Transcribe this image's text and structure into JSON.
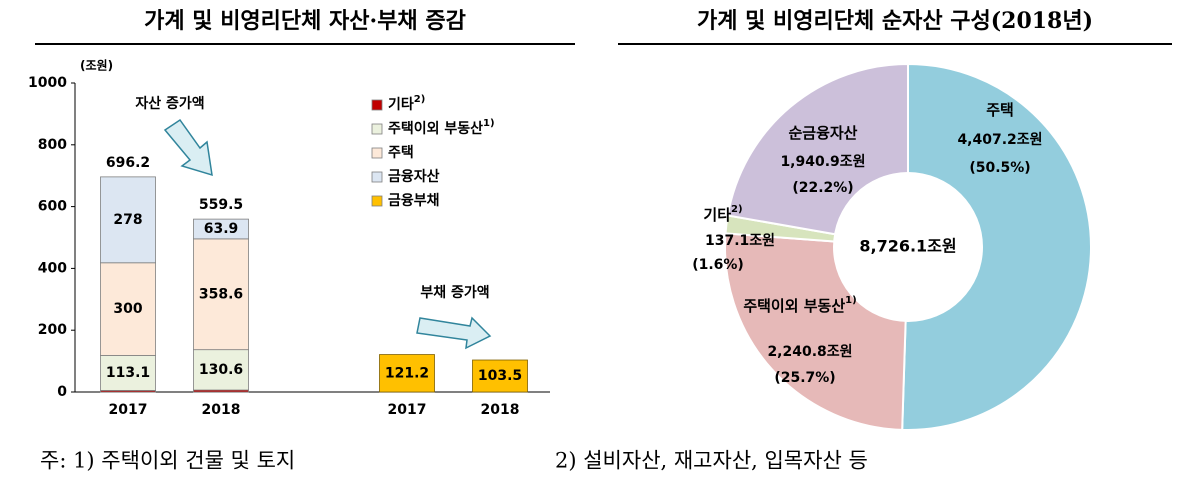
{
  "chart_data": [
    {
      "type": "stacked-bar",
      "title": "가계 및 비영리단체 자산·부채 증감",
      "y_label": "(조원)",
      "categories": [
        "2017",
        "2018",
        "2017",
        "2018"
      ],
      "series": [
        {
          "name": "기타",
          "note": "2)",
          "color": "#c00000",
          "values": [
            5.1,
            6.4,
            null,
            null
          ]
        },
        {
          "name": "주택이외 부동산",
          "note": "1)",
          "color": "#ebf1de",
          "values": [
            113.1,
            130.6,
            null,
            null
          ]
        },
        {
          "name": "주택",
          "color": "#fde9d9",
          "values": [
            300.0,
            358.6,
            null,
            null
          ]
        },
        {
          "name": "금융자산",
          "color": "#dce6f2",
          "values": [
            278.0,
            63.9,
            null,
            null
          ]
        },
        {
          "name": "금융부채",
          "color": "#ffc000",
          "values": [
            null,
            null,
            121.2,
            103.5
          ]
        }
      ],
      "totals": [
        696.2,
        559.5,
        null,
        null
      ],
      "annotations": [
        "자산 증가액",
        "부채 증가액"
      ],
      "ylim": [
        0,
        1000
      ],
      "yticks": [
        0,
        200,
        400,
        600,
        800,
        1000
      ],
      "grid": false
    },
    {
      "type": "donut",
      "title": "가계 및 비영리단체 순자산 구성(2018년)",
      "categories": [
        "주택",
        "주택이외 부동산",
        "기타",
        "순금융자산"
      ],
      "notes": [
        null,
        "1)",
        "2)",
        null
      ],
      "values": [
        4407.2,
        2240.8,
        137.1,
        1940.9
      ],
      "value_labels": [
        "4,407.2조원",
        "2,240.8조원",
        "137.1조원",
        "1,940.9조원"
      ],
      "share_labels": [
        "(50.5%)",
        "(25.7%)",
        "(1.6%)",
        "(22.2%)"
      ],
      "colors": [
        "#93cddd",
        "#e6b9b8",
        "#d7e4bd",
        "#ccc0da"
      ],
      "center_label": "8,726.1조원"
    }
  ],
  "footnotes": [
    "주: 1) 주택이외 건물 및 토지",
    "2) 설비자산, 재고자산, 입목자산 등"
  ]
}
